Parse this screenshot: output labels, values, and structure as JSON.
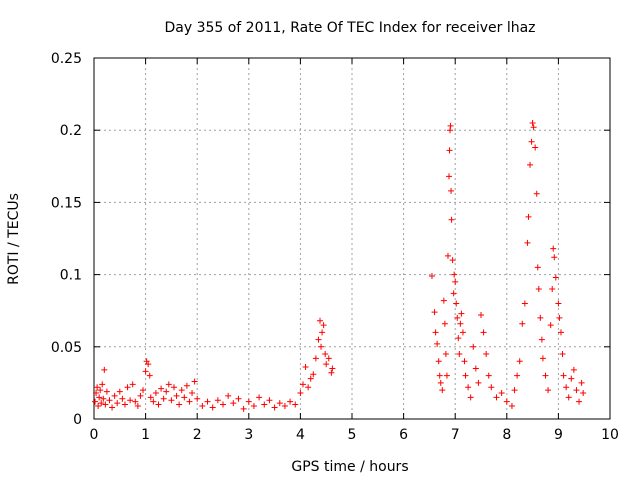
{
  "chart_data": {
    "type": "scatter",
    "title": "Day 355 of 2011, Rate Of TEC Index for receiver lhaz",
    "xlabel": "GPS time / hours",
    "ylabel": "ROTI / TECUs",
    "xlim": [
      0,
      10
    ],
    "ylim": [
      0,
      0.25
    ],
    "x_ticks": [
      "0",
      "1",
      "2",
      "3",
      "4",
      "5",
      "6",
      "7",
      "8",
      "9",
      "10"
    ],
    "y_ticks": [
      "0",
      "0.05",
      "0.1",
      "0.15",
      "0.2",
      "0.25"
    ],
    "grid": true,
    "marker": "+",
    "series": [
      {
        "name": "ROTI",
        "color": "#ff0000",
        "points": [
          [
            0.02,
            0.012
          ],
          [
            0.04,
            0.018
          ],
          [
            0.06,
            0.022
          ],
          [
            0.08,
            0.009
          ],
          [
            0.1,
            0.015
          ],
          [
            0.12,
            0.02
          ],
          [
            0.14,
            0.011
          ],
          [
            0.16,
            0.024
          ],
          [
            0.18,
            0.014
          ],
          [
            0.2,
            0.034
          ],
          [
            0.22,
            0.01
          ],
          [
            0.25,
            0.019
          ],
          [
            0.3,
            0.013
          ],
          [
            0.35,
            0.008
          ],
          [
            0.4,
            0.016
          ],
          [
            0.45,
            0.011
          ],
          [
            0.5,
            0.019
          ],
          [
            0.55,
            0.014
          ],
          [
            0.6,
            0.01
          ],
          [
            0.65,
            0.022
          ],
          [
            0.7,
            0.013
          ],
          [
            0.75,
            0.024
          ],
          [
            0.8,
            0.012
          ],
          [
            0.85,
            0.009
          ],
          [
            0.9,
            0.016
          ],
          [
            0.95,
            0.02
          ],
          [
            1.0,
            0.033
          ],
          [
            1.02,
            0.04
          ],
          [
            1.05,
            0.038
          ],
          [
            1.08,
            0.03
          ],
          [
            1.1,
            0.015
          ],
          [
            1.15,
            0.012
          ],
          [
            1.2,
            0.018
          ],
          [
            1.25,
            0.01
          ],
          [
            1.3,
            0.021
          ],
          [
            1.35,
            0.014
          ],
          [
            1.4,
            0.019
          ],
          [
            1.45,
            0.024
          ],
          [
            1.5,
            0.013
          ],
          [
            1.55,
            0.022
          ],
          [
            1.6,
            0.016
          ],
          [
            1.65,
            0.01
          ],
          [
            1.7,
            0.02
          ],
          [
            1.75,
            0.015
          ],
          [
            1.8,
            0.023
          ],
          [
            1.85,
            0.012
          ],
          [
            1.9,
            0.018
          ],
          [
            1.95,
            0.026
          ],
          [
            2.0,
            0.014
          ],
          [
            2.1,
            0.009
          ],
          [
            2.2,
            0.012
          ],
          [
            2.3,
            0.008
          ],
          [
            2.4,
            0.013
          ],
          [
            2.5,
            0.01
          ],
          [
            2.6,
            0.016
          ],
          [
            2.7,
            0.011
          ],
          [
            2.8,
            0.014
          ],
          [
            2.9,
            0.007
          ],
          [
            3.0,
            0.012
          ],
          [
            3.1,
            0.009
          ],
          [
            3.2,
            0.015
          ],
          [
            3.3,
            0.01
          ],
          [
            3.4,
            0.013
          ],
          [
            3.5,
            0.008
          ],
          [
            3.6,
            0.011
          ],
          [
            3.7,
            0.009
          ],
          [
            3.8,
            0.012
          ],
          [
            3.9,
            0.01
          ],
          [
            4.0,
            0.018
          ],
          [
            4.05,
            0.024
          ],
          [
            4.1,
            0.036
          ],
          [
            4.15,
            0.022
          ],
          [
            4.2,
            0.028
          ],
          [
            4.25,
            0.031
          ],
          [
            4.3,
            0.042
          ],
          [
            4.35,
            0.055
          ],
          [
            4.38,
            0.068
          ],
          [
            4.4,
            0.05
          ],
          [
            4.42,
            0.06
          ],
          [
            4.45,
            0.065
          ],
          [
            4.48,
            0.045
          ],
          [
            4.5,
            0.038
          ],
          [
            4.55,
            0.042
          ],
          [
            4.6,
            0.032
          ],
          [
            4.62,
            0.035
          ],
          [
            6.55,
            0.099
          ],
          [
            6.6,
            0.074
          ],
          [
            6.62,
            0.06
          ],
          [
            6.65,
            0.052
          ],
          [
            6.68,
            0.04
          ],
          [
            6.7,
            0.03
          ],
          [
            6.72,
            0.025
          ],
          [
            6.75,
            0.02
          ],
          [
            6.78,
            0.082
          ],
          [
            6.8,
            0.066
          ],
          [
            6.82,
            0.045
          ],
          [
            6.84,
            0.03
          ],
          [
            6.86,
            0.113
          ],
          [
            6.88,
            0.168
          ],
          [
            6.89,
            0.186
          ],
          [
            6.9,
            0.2
          ],
          [
            6.91,
            0.203
          ],
          [
            6.92,
            0.158
          ],
          [
            6.93,
            0.138
          ],
          [
            6.95,
            0.11
          ],
          [
            6.97,
            0.087
          ],
          [
            6.98,
            0.1
          ],
          [
            7.0,
            0.095
          ],
          [
            7.02,
            0.08
          ],
          [
            7.04,
            0.07
          ],
          [
            7.06,
            0.056
          ],
          [
            7.08,
            0.045
          ],
          [
            7.1,
            0.066
          ],
          [
            7.12,
            0.073
          ],
          [
            7.15,
            0.06
          ],
          [
            7.18,
            0.04
          ],
          [
            7.2,
            0.03
          ],
          [
            7.25,
            0.022
          ],
          [
            7.3,
            0.015
          ],
          [
            7.35,
            0.05
          ],
          [
            7.4,
            0.035
          ],
          [
            7.45,
            0.025
          ],
          [
            7.5,
            0.072
          ],
          [
            7.55,
            0.06
          ],
          [
            7.6,
            0.045
          ],
          [
            7.65,
            0.03
          ],
          [
            7.7,
            0.022
          ],
          [
            7.8,
            0.015
          ],
          [
            7.9,
            0.018
          ],
          [
            8.0,
            0.012
          ],
          [
            8.1,
            0.009
          ],
          [
            8.15,
            0.02
          ],
          [
            8.2,
            0.03
          ],
          [
            8.25,
            0.04
          ],
          [
            8.3,
            0.066
          ],
          [
            8.35,
            0.08
          ],
          [
            8.4,
            0.122
          ],
          [
            8.42,
            0.14
          ],
          [
            8.45,
            0.176
          ],
          [
            8.48,
            0.192
          ],
          [
            8.5,
            0.205
          ],
          [
            8.52,
            0.202
          ],
          [
            8.55,
            0.188
          ],
          [
            8.58,
            0.156
          ],
          [
            8.6,
            0.105
          ],
          [
            8.62,
            0.09
          ],
          [
            8.65,
            0.07
          ],
          [
            8.68,
            0.055
          ],
          [
            8.7,
            0.042
          ],
          [
            8.75,
            0.03
          ],
          [
            8.8,
            0.02
          ],
          [
            8.85,
            0.065
          ],
          [
            8.88,
            0.09
          ],
          [
            8.9,
            0.118
          ],
          [
            8.92,
            0.112
          ],
          [
            8.95,
            0.098
          ],
          [
            9.0,
            0.08
          ],
          [
            9.02,
            0.07
          ],
          [
            9.05,
            0.06
          ],
          [
            9.08,
            0.045
          ],
          [
            9.1,
            0.03
          ],
          [
            9.15,
            0.022
          ],
          [
            9.2,
            0.015
          ],
          [
            9.25,
            0.028
          ],
          [
            9.3,
            0.034
          ],
          [
            9.35,
            0.02
          ],
          [
            9.4,
            0.012
          ],
          [
            9.45,
            0.025
          ],
          [
            9.48,
            0.018
          ]
        ]
      }
    ]
  }
}
